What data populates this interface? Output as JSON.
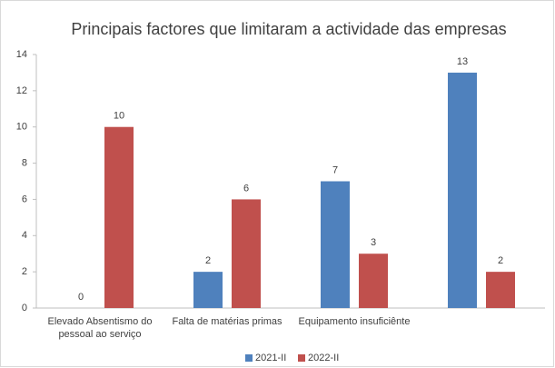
{
  "chart_data": {
    "type": "bar",
    "title": "Principais factores que limitaram a actividade das empresas",
    "categories": [
      "Elevado Absentismo do pessoal ao serviço",
      "Falta de matérias primas",
      "Equipamento insuficiênte",
      null
    ],
    "series": [
      {
        "name": "2021-II",
        "color": "#4f81bd",
        "values": [
          0,
          2,
          7,
          13
        ]
      },
      {
        "name": "2022-II",
        "color": "#c0504d",
        "values": [
          10,
          6,
          3,
          2
        ]
      }
    ],
    "ylim": [
      0,
      14
    ],
    "yticks": [
      0,
      2,
      4,
      6,
      8,
      10,
      12,
      14
    ],
    "grid": false,
    "legend": "bottom",
    "data_labels": true
  }
}
